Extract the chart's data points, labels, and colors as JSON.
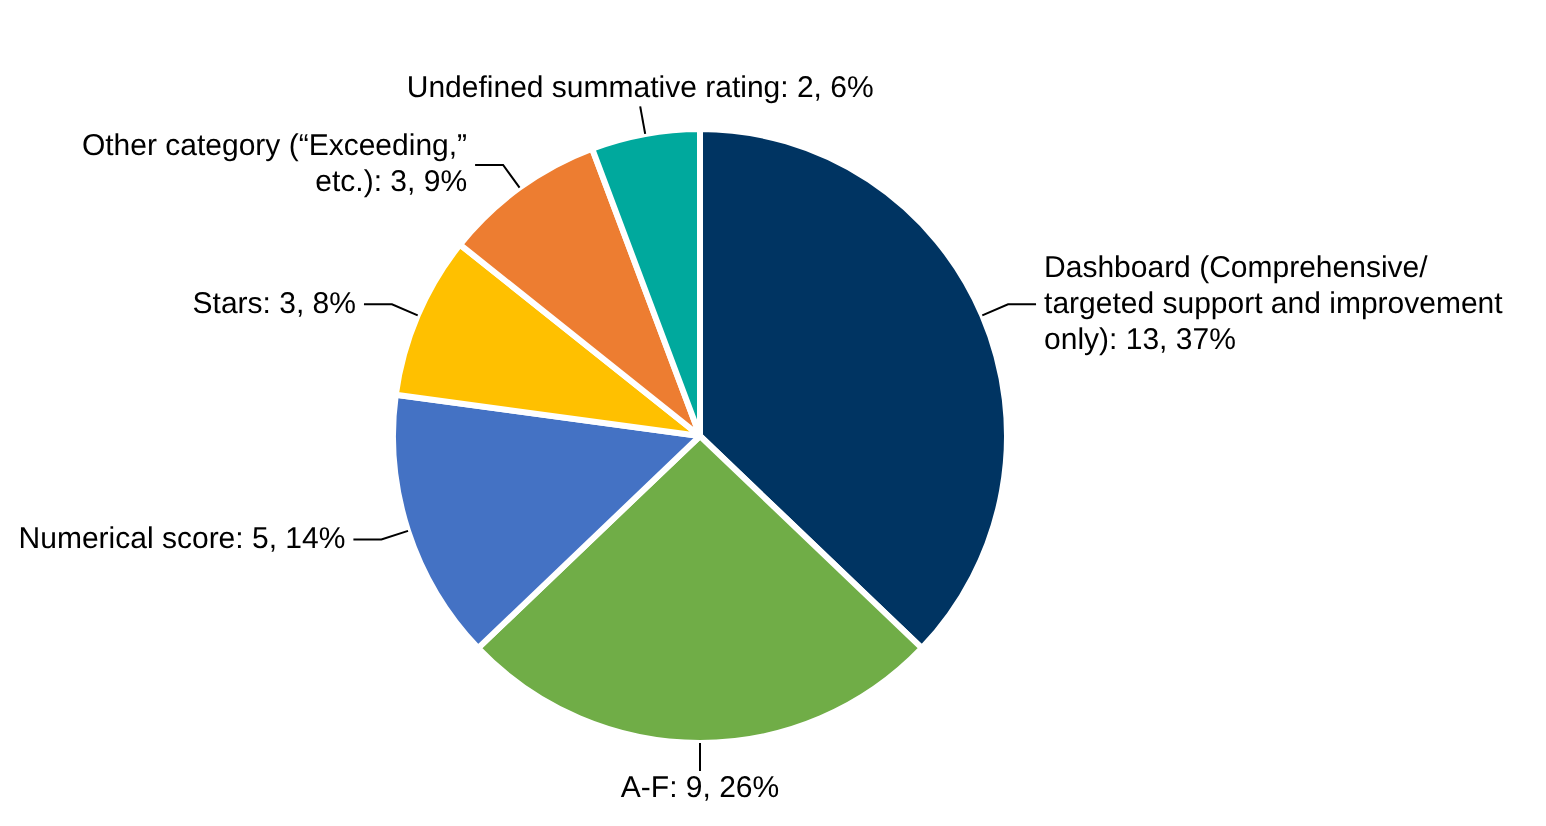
{
  "chart_data": {
    "type": "pie",
    "categories": [
      "Dashboard (Comprehensive/ targeted support and improvement only)",
      "A-F",
      "Numerical score",
      "Stars",
      "Other category (“Exceeding,” etc.)",
      "Undefined summative rating"
    ],
    "values": [
      13,
      9,
      5,
      3,
      3,
      2
    ],
    "value_labels": [
      "13, 37%",
      "9, 26%",
      "5, 14%",
      "3, 8%",
      "3, 9%",
      "2, 6%"
    ],
    "colors": [
      "#003462",
      "#70ad47",
      "#4472c4",
      "#ffc000",
      "#ed7d31",
      "#00a99d"
    ],
    "legend": false
  }
}
